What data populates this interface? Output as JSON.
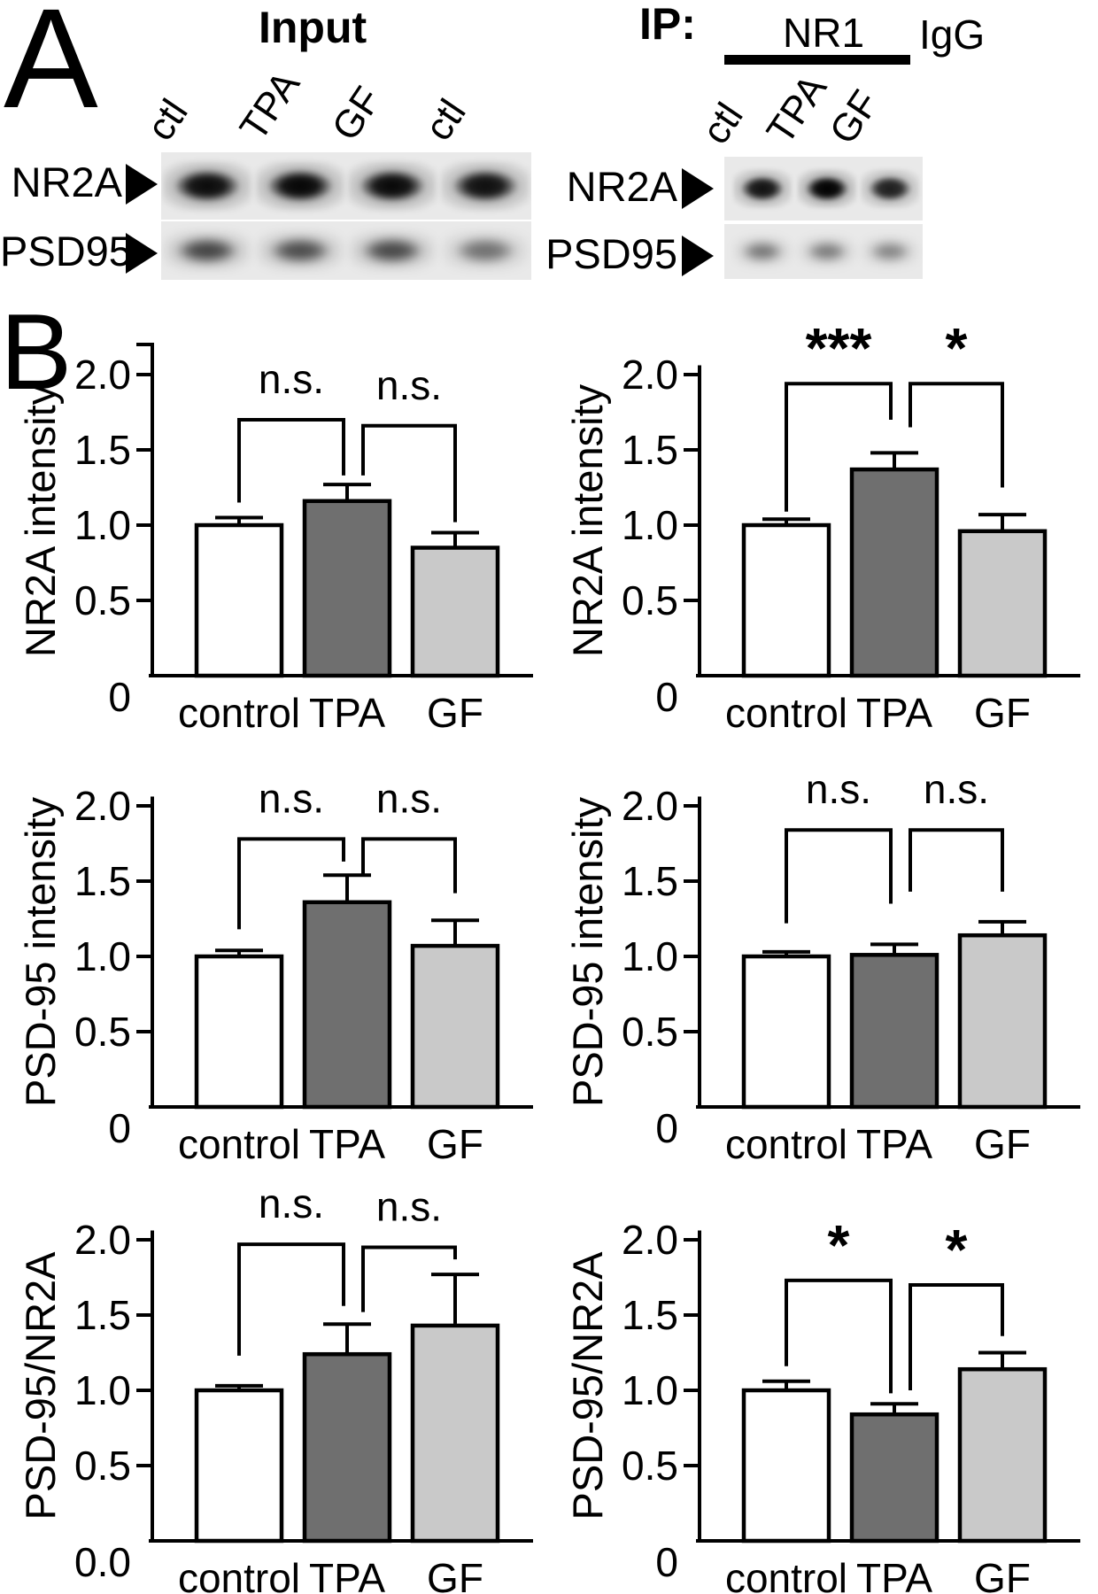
{
  "figure": {
    "panel_a_label": "A",
    "panel_b_label": "B"
  },
  "blots": {
    "input": {
      "title": "Input",
      "lane_labels": [
        "ctl",
        "TPA",
        "GF",
        "ctl"
      ],
      "rows": [
        {
          "label": "NR2A",
          "arrow": "right-triangle",
          "bands": [
            0.93,
            0.97,
            0.95,
            0.9
          ]
        },
        {
          "label": "PSD95",
          "arrow": "right-triangle",
          "bands": [
            0.62,
            0.58,
            0.6,
            0.42
          ]
        }
      ]
    },
    "ip": {
      "title": "IP:",
      "antibody_label": "NR1",
      "igg_label": "IgG",
      "lane_labels": [
        "ctl",
        "TPA",
        "GF"
      ],
      "rows": [
        {
          "label": "NR2A",
          "arrow": "right-triangle",
          "bands": [
            0.88,
            1.0,
            0.8
          ]
        },
        {
          "label": "PSD95",
          "arrow": "right-triangle",
          "bands": [
            0.4,
            0.38,
            0.34
          ]
        }
      ]
    }
  },
  "chart_data": [
    {
      "id": "input-nr2a",
      "type": "bar",
      "group": "Input",
      "ylabel": "NR2A intensity",
      "categories": [
        "control",
        "TPA",
        "GF"
      ],
      "values": [
        1.0,
        1.16,
        0.85
      ],
      "errors": [
        0.05,
        0.11,
        0.1
      ],
      "bar_colors": [
        "#ffffff",
        "#6f6f6f",
        "#c9c9c9"
      ],
      "axis_color": "#000000",
      "ylim": [
        0,
        2.2
      ],
      "grid": false,
      "top_tick": true,
      "yticks": [
        0,
        0.5,
        1.0,
        1.5,
        2.0
      ],
      "ytick_labels": [
        "0",
        "0.5",
        "1.0",
        "1.5",
        "2.0"
      ],
      "brackets": [
        {
          "from": 0,
          "to": 1,
          "label": "n.s.",
          "top": 1.7,
          "drop_from": 1.15,
          "drop_to": 1.33
        },
        {
          "from": 1,
          "to": 2,
          "label": "n.s.",
          "top": 1.66,
          "drop_from": 1.33,
          "drop_to": 1.02
        }
      ]
    },
    {
      "id": "ip-nr2a",
      "type": "bar",
      "group": "IP",
      "ylabel": "NR2A intensity",
      "categories": [
        "control",
        "TPA",
        "GF"
      ],
      "values": [
        1.0,
        1.37,
        0.96
      ],
      "errors": [
        0.04,
        0.11,
        0.11
      ],
      "bar_colors": [
        "#ffffff",
        "#6f6f6f",
        "#c9c9c9"
      ],
      "axis_color": "#000000",
      "ylim": [
        0,
        2.05
      ],
      "grid": false,
      "top_tick": false,
      "yticks": [
        0,
        0.5,
        1.0,
        1.5,
        2.0
      ],
      "ytick_labels": [
        "0",
        "0.5",
        "1.0",
        "1.5",
        "2.0"
      ],
      "brackets": [
        {
          "from": 0,
          "to": 1,
          "label": "***",
          "top": 1.94,
          "drop_from": 1.09,
          "drop_to": 1.7
        },
        {
          "from": 1,
          "to": 2,
          "label": "*",
          "top": 1.94,
          "drop_from": 1.65,
          "drop_to": 1.25
        }
      ]
    },
    {
      "id": "input-psd95",
      "type": "bar",
      "group": "Input",
      "ylabel": "PSD-95 intensity",
      "categories": [
        "control",
        "TPA",
        "GF"
      ],
      "values": [
        1.0,
        1.36,
        1.07
      ],
      "errors": [
        0.04,
        0.18,
        0.17
      ],
      "bar_colors": [
        "#ffffff",
        "#6f6f6f",
        "#c9c9c9"
      ],
      "axis_color": "#000000",
      "ylim": [
        0,
        2.05
      ],
      "grid": false,
      "top_tick": false,
      "yticks": [
        0,
        0.5,
        1.0,
        1.5,
        2.0
      ],
      "ytick_labels": [
        "0",
        "0.5",
        "1.0",
        "1.5",
        "2.0"
      ],
      "brackets": [
        {
          "from": 0,
          "to": 1,
          "label": "n.s.",
          "top": 1.78,
          "drop_from": 1.18,
          "drop_to": 1.63
        },
        {
          "from": 1,
          "to": 2,
          "label": "n.s.",
          "top": 1.78,
          "drop_from": 1.53,
          "drop_to": 1.42
        }
      ]
    },
    {
      "id": "ip-psd95",
      "type": "bar",
      "group": "IP",
      "ylabel": "PSD-95 intensity",
      "categories": [
        "control",
        "TPA",
        "GF"
      ],
      "values": [
        1.0,
        1.01,
        1.14
      ],
      "errors": [
        0.03,
        0.07,
        0.09
      ],
      "bar_colors": [
        "#ffffff",
        "#6f6f6f",
        "#c9c9c9"
      ],
      "axis_color": "#000000",
      "ylim": [
        0,
        2.05
      ],
      "grid": false,
      "top_tick": false,
      "yticks": [
        0,
        0.5,
        1.0,
        1.5,
        2.0
      ],
      "ytick_labels": [
        "0",
        "0.5",
        "1.0",
        "1.5",
        "2.0"
      ],
      "brackets": [
        {
          "from": 0,
          "to": 1,
          "label": "n.s.",
          "top": 1.84,
          "drop_from": 1.22,
          "drop_to": 1.35
        },
        {
          "from": 1,
          "to": 2,
          "label": "n.s.",
          "top": 1.84,
          "drop_from": 1.43,
          "drop_to": 1.43
        }
      ]
    },
    {
      "id": "input-ratio",
      "type": "bar",
      "group": "Input",
      "ylabel": "PSD-95/NR2A",
      "categories": [
        "control",
        "TPA",
        "GF"
      ],
      "values": [
        1.0,
        1.24,
        1.43
      ],
      "errors": [
        0.03,
        0.2,
        0.34
      ],
      "bar_colors": [
        "#ffffff",
        "#6f6f6f",
        "#c9c9c9"
      ],
      "axis_color": "#000000",
      "ylim": [
        0,
        2.05
      ],
      "grid": false,
      "top_tick": false,
      "yticks": [
        0,
        0.5,
        1.0,
        1.5,
        2.0
      ],
      "ytick_labels": [
        "0.0",
        "0.5",
        "1.0",
        "1.5",
        "2.0"
      ],
      "brackets": [
        {
          "from": 0,
          "to": 1,
          "label": "n.s.",
          "top": 1.97,
          "drop_from": 1.23,
          "drop_to": 1.56
        },
        {
          "from": 1,
          "to": 2,
          "label": "n.s.",
          "top": 1.95,
          "drop_from": 1.52,
          "drop_to": 1.87
        }
      ]
    },
    {
      "id": "ip-ratio",
      "type": "bar",
      "group": "IP",
      "ylabel": "PSD-95/NR2A",
      "categories": [
        "control",
        "TPA",
        "GF"
      ],
      "values": [
        1.0,
        0.84,
        1.14
      ],
      "errors": [
        0.06,
        0.07,
        0.11
      ],
      "bar_colors": [
        "#ffffff",
        "#6f6f6f",
        "#c9c9c9"
      ],
      "axis_color": "#000000",
      "ylim": [
        0,
        2.05
      ],
      "grid": false,
      "top_tick": false,
      "yticks": [
        0,
        0.5,
        1.0,
        1.5,
        2.0
      ],
      "ytick_labels": [
        "0",
        "0.5",
        "1.0",
        "1.5",
        "2.0"
      ],
      "brackets": [
        {
          "from": 0,
          "to": 1,
          "label": "*",
          "top": 1.73,
          "drop_from": 1.16,
          "drop_to": 0.98
        },
        {
          "from": 1,
          "to": 2,
          "label": "*",
          "top": 1.7,
          "drop_from": 1.0,
          "drop_to": 1.36
        }
      ]
    }
  ]
}
